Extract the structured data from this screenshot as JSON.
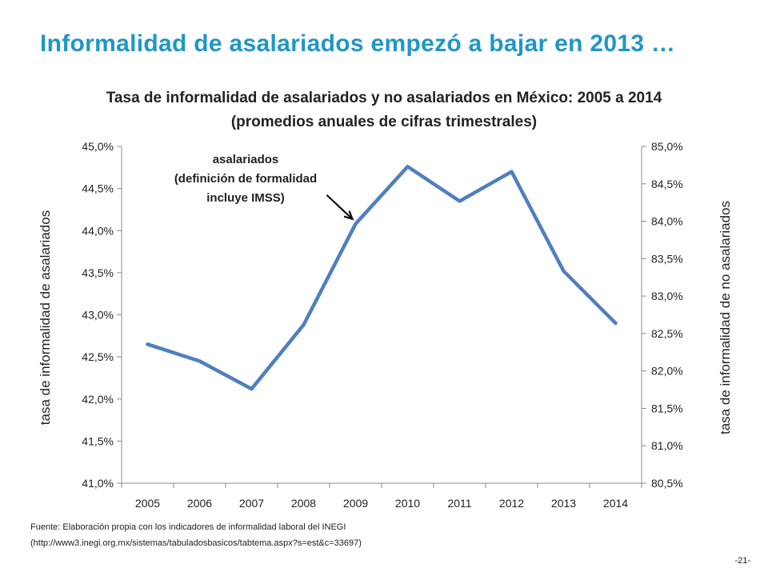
{
  "slide": {
    "title": "Informalidad de asalariados empezó a bajar en 2013 …",
    "title_color": "#1f97c4",
    "page_number": "-21-"
  },
  "chart_data": {
    "type": "line",
    "title_line1": "Tasa de informalidad de asalariados y no asalariados en México: 2005 a 2014",
    "title_line2": "(promedios anuales de cifras trimestrales)",
    "x": [
      "2005",
      "2006",
      "2007",
      "2008",
      "2009",
      "2010",
      "2011",
      "2012",
      "2013",
      "2014"
    ],
    "series": [
      {
        "name": "asalariados",
        "axis": "left",
        "color": "#4f7fbf",
        "values": [
          42.65,
          42.45,
          42.12,
          42.88,
          44.08,
          44.76,
          44.35,
          44.7,
          43.52,
          42.9
        ]
      }
    ],
    "ylabel_left": "tasa de informalidad de asalariados",
    "ylabel_right": "tasa de informalidad de no asalariados",
    "ylim_left": [
      41.0,
      45.0
    ],
    "ylim_right": [
      80.5,
      85.0
    ],
    "yticks_left": [
      "41,0%",
      "41,5%",
      "42,0%",
      "42,5%",
      "43,0%",
      "43,5%",
      "44,0%",
      "44,5%",
      "45,0%"
    ],
    "yticks_right": [
      "80,5%",
      "81,0%",
      "81,5%",
      "82,0%",
      "82,5%",
      "83,0%",
      "83,5%",
      "84,0%",
      "84,5%",
      "85,0%"
    ],
    "annotation": {
      "line1": "asalariados",
      "line2": "(definición de formalidad",
      "line3": "incluye IMSS)",
      "points_to": "2009"
    },
    "grid": false
  },
  "source": {
    "line1": "Fuente: Elaboración propia con los indicadores de informalidad laboral del INEGI",
    "line2": "(http://www3.inegi.org.mx/sistemas/tabuladosbasicos/tabtema.aspx?s=est&c=33697)"
  }
}
